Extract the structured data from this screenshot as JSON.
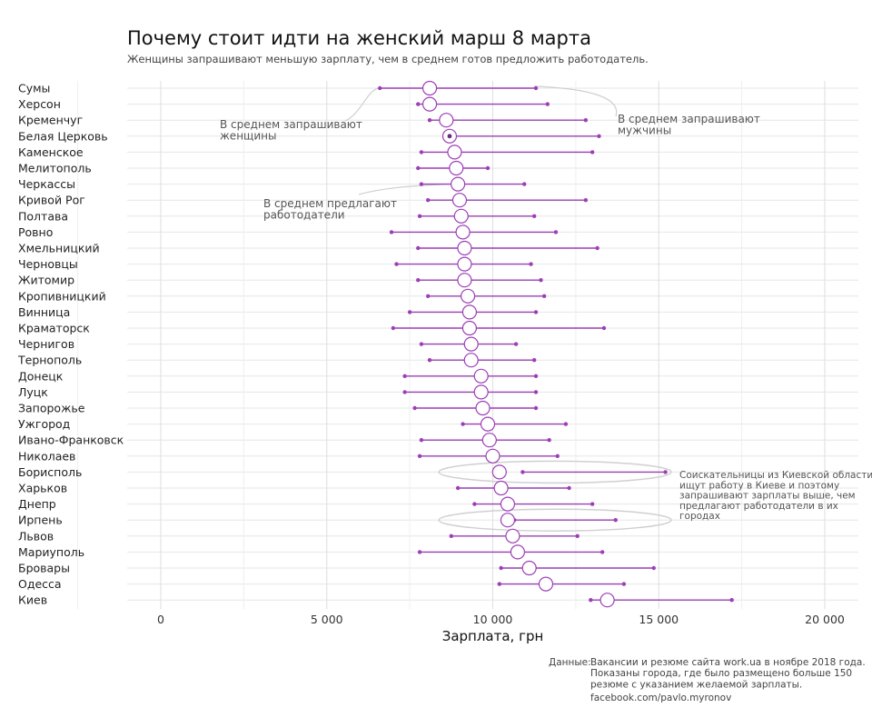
{
  "chart_data": {
    "type": "dumbbell",
    "title": "Почему стоит идти на женский марш 8 марта",
    "subtitle": "Женщины запрашивают меньшую зарплату, чем в среднем готов предложить работодатель.",
    "xlabel": "Зарплата, грн",
    "xlim": [
      -1000,
      21000
    ],
    "xticks": [
      0,
      5000,
      10000,
      15000,
      20000
    ],
    "xtick_labels": [
      "0",
      "5 000",
      "10 000",
      "15 000",
      "20 000"
    ],
    "grid": true,
    "colors": {
      "range_line": "#9b3fb5",
      "employer_circle_stroke": "#9b3fb5",
      "grid": "#e6e6e6",
      "highlight_ellipse": "#d0d0d0"
    },
    "columns": [
      "women",
      "employer",
      "men"
    ],
    "rows": [
      {
        "city": "Сумы",
        "women": 6600,
        "employer": 8100,
        "men": 11300
      },
      {
        "city": "Херсон",
        "women": 7750,
        "employer": 8100,
        "men": 11650
      },
      {
        "city": "Кременчуг",
        "women": 8100,
        "employer": 8600,
        "men": 12800
      },
      {
        "city": "Белая Церковь",
        "women": 8700,
        "employer": 8700,
        "men": 13200
      },
      {
        "city": "Каменское",
        "women": 7850,
        "employer": 8850,
        "men": 13000
      },
      {
        "city": "Мелитополь",
        "women": 7750,
        "employer": 8900,
        "men": 9850
      },
      {
        "city": "Черкассы",
        "women": 7850,
        "employer": 8950,
        "men": 10950
      },
      {
        "city": "Кривой Рог",
        "women": 8050,
        "employer": 9000,
        "men": 12800
      },
      {
        "city": "Полтава",
        "women": 7800,
        "employer": 9050,
        "men": 11250
      },
      {
        "city": "Ровно",
        "women": 6950,
        "employer": 9100,
        "men": 11900
      },
      {
        "city": "Хмельницкий",
        "women": 7750,
        "employer": 9150,
        "men": 13150
      },
      {
        "city": "Черновцы",
        "women": 7100,
        "employer": 9150,
        "men": 11150
      },
      {
        "city": "Житомир",
        "women": 7750,
        "employer": 9150,
        "men": 11450
      },
      {
        "city": "Кропивницкий",
        "women": 8050,
        "employer": 9250,
        "men": 11550
      },
      {
        "city": "Винница",
        "women": 7500,
        "employer": 9300,
        "men": 11300
      },
      {
        "city": "Краматорск",
        "women": 7000,
        "employer": 9300,
        "men": 13350
      },
      {
        "city": "Чернигов",
        "women": 7850,
        "employer": 9350,
        "men": 10700
      },
      {
        "city": "Тернополь",
        "women": 8100,
        "employer": 9350,
        "men": 11250
      },
      {
        "city": "Донецк",
        "women": 7350,
        "employer": 9650,
        "men": 11300
      },
      {
        "city": "Луцк",
        "women": 7350,
        "employer": 9650,
        "men": 11300
      },
      {
        "city": "Запорожье",
        "women": 7650,
        "employer": 9700,
        "men": 11300
      },
      {
        "city": "Ужгород",
        "women": 9100,
        "employer": 9850,
        "men": 12200
      },
      {
        "city": "Ивано-Франковск",
        "women": 7850,
        "employer": 9900,
        "men": 11700
      },
      {
        "city": "Николаев",
        "women": 7800,
        "employer": 10000,
        "men": 11950
      },
      {
        "city": "Борисполь",
        "women": 10900,
        "employer": 10200,
        "men": 15200
      },
      {
        "city": "Харьков",
        "women": 8950,
        "employer": 10250,
        "men": 12300
      },
      {
        "city": "Днепр",
        "women": 9450,
        "employer": 10450,
        "men": 13000
      },
      {
        "city": "Ирпень",
        "women": 10650,
        "employer": 10450,
        "men": 13700
      },
      {
        "city": "Львов",
        "women": 8750,
        "employer": 10600,
        "men": 12550
      },
      {
        "city": "Мариуполь",
        "women": 7800,
        "employer": 10750,
        "men": 13300
      },
      {
        "city": "Бровары",
        "women": 10250,
        "employer": 11100,
        "men": 14850
      },
      {
        "city": "Одесса",
        "women": 10200,
        "employer": 11600,
        "men": 13950
      },
      {
        "city": "Киев",
        "women": 12950,
        "employer": 13450,
        "men": 17200
      }
    ],
    "annotations": {
      "women": [
        "В среднем запрашивают",
        "женщины"
      ],
      "men": [
        "В среднем запрашивают",
        "мужчины"
      ],
      "employer": [
        "В среднем предлагают",
        "работодатели"
      ],
      "kyiv_region": [
        "Соискательницы из Киевской области",
        "ищут работу в Киеве и поэтому",
        "запрашивают зарплаты выше, чем",
        "предлагают работодатели в их",
        "городах"
      ]
    },
    "source": {
      "label": "Данные:",
      "lines": [
        "Вакансии и резюме сайта work.ua в ноябре 2018 года.",
        "Показаны города, где было размещено больше 150",
        "резюме с указанием желаемой зарплаты."
      ],
      "credit": "facebook.com/pavlo.myronov"
    }
  }
}
